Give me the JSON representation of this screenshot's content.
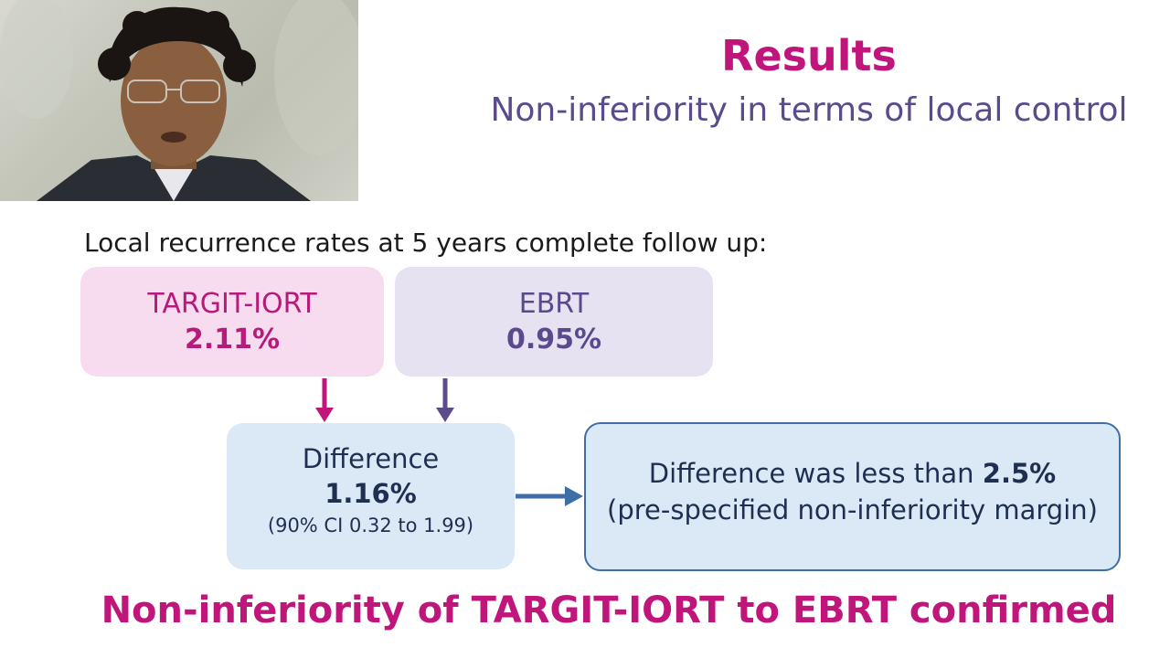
{
  "slide": {
    "title": "Results",
    "subtitle": "Non-inferiority in terms of local control",
    "intro": "Local recurrence rates at 5 years complete follow up:",
    "targit": {
      "label": "TARGIT-IORT",
      "value": "2.11%"
    },
    "ebrt": {
      "label": "EBRT",
      "value": "0.95%"
    },
    "difference": {
      "label": "Difference",
      "value": "1.16%",
      "ci": "(90% CI 0.32 to 1.99)"
    },
    "margin": {
      "line1_prefix": "Difference was less than",
      "line1_value": "2.5%",
      "line2": "(pre-specified non-inferiority margin)"
    },
    "conclusion": "Non-inferiority of TARGIT-IORT to EBRT confirmed"
  },
  "colors": {
    "accent_magenta": "#c0157a",
    "accent_purple": "#5b4a8c",
    "arrow_blue": "#3e6ea8"
  }
}
